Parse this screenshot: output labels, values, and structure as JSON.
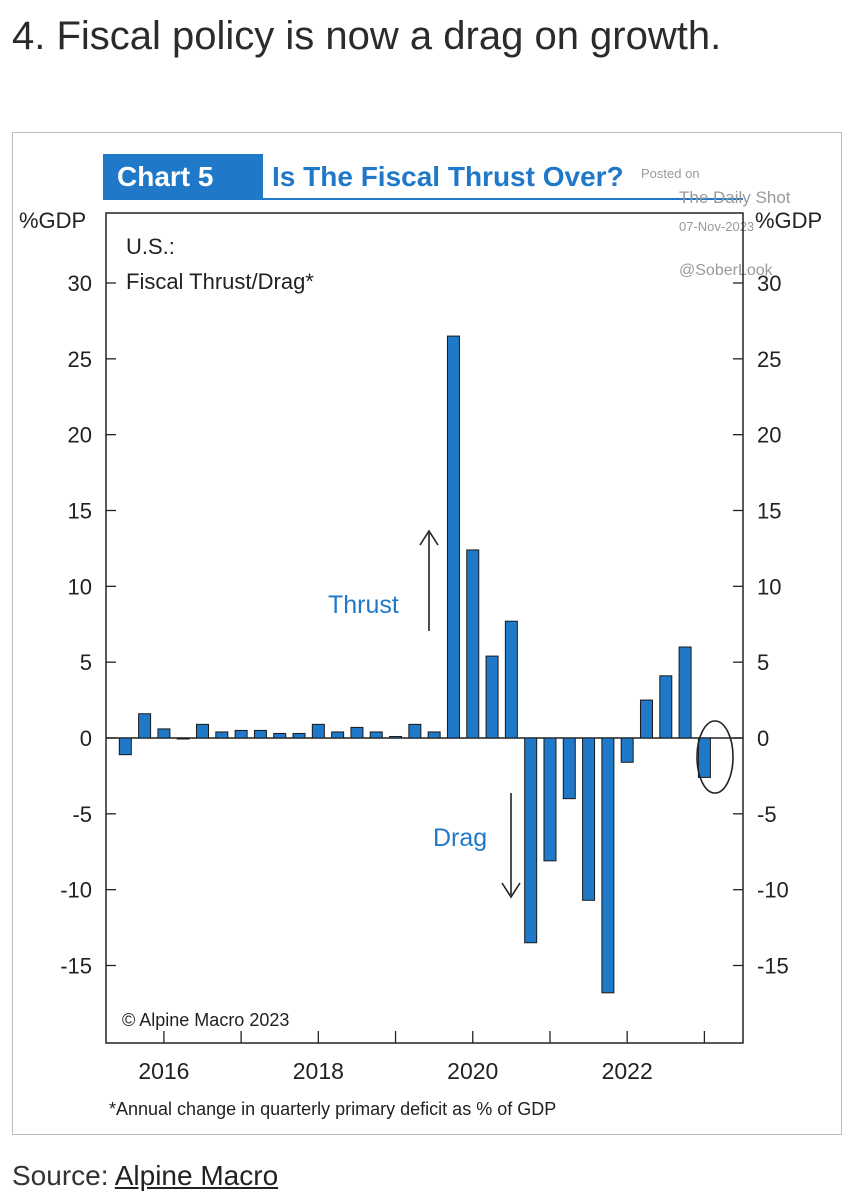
{
  "headline": "4. Fiscal policy is now a drag on growth.",
  "source": {
    "label": "Source:",
    "link": "Alpine Macro"
  },
  "colors": {
    "bar": "#1f78c8",
    "badge": "#1f78c8",
    "title": "#1f78c8",
    "annotation": "#1f78c8"
  },
  "chart_data": {
    "type": "bar",
    "badge": "Chart 5",
    "title": "Is The Fiscal Thrust Over?",
    "subtitle_lines": [
      "U.S.:",
      "Fiscal Thrust/Drag*"
    ],
    "ylabel_left": "%GDP",
    "ylabel_right": "%GDP",
    "ylim": [
      -18.5,
      34
    ],
    "yticks": [
      30,
      25,
      20,
      15,
      10,
      5,
      0,
      -5,
      -10,
      -15
    ],
    "x_range": [
      2015.25,
      2023.5
    ],
    "x_ticks": [
      2016,
      2017,
      2018,
      2019,
      2020,
      2021,
      2022,
      2023
    ],
    "x_tick_labels": [
      "2016",
      "2018",
      "2020",
      "2022"
    ],
    "x_tick_label_years": [
      2016,
      2018,
      2020,
      2022
    ],
    "series": [
      {
        "name": "Fiscal Thrust/Drag",
        "x": [
          2015.5,
          2015.75,
          2016.0,
          2016.25,
          2016.5,
          2016.75,
          2017.0,
          2017.25,
          2017.5,
          2017.75,
          2018.0,
          2018.25,
          2018.5,
          2018.75,
          2019.0,
          2019.25,
          2019.5,
          2019.75,
          2020.0,
          2020.25,
          2020.5,
          2020.75,
          2021.0,
          2021.25,
          2021.5,
          2021.75,
          2022.0,
          2022.25,
          2022.5,
          2022.75,
          2023.0,
          2023.25
        ],
        "values": [
          -1.1,
          1.6,
          0.6,
          0.0,
          0.9,
          0.4,
          0.5,
          0.5,
          0.3,
          0.3,
          0.9,
          0.4,
          0.7,
          0.4,
          0.1,
          0.9,
          0.4,
          26.5,
          12.4,
          5.4,
          7.7,
          -13.5,
          -8.1,
          -4.0,
          -10.7,
          -16.8,
          -1.6,
          2.5,
          4.1,
          6.0,
          -2.6,
          null
        ]
      }
    ],
    "annotations": {
      "thrust": "Thrust",
      "drag": "Drag",
      "copyright": "© Alpine Macro 2023",
      "footnote": "*Annual change in quarterly primary deficit as % of GDP"
    },
    "watermark": [
      "Posted on",
      "The Daily Shot",
      "07-Nov-2023",
      "@SoberLook"
    ]
  }
}
